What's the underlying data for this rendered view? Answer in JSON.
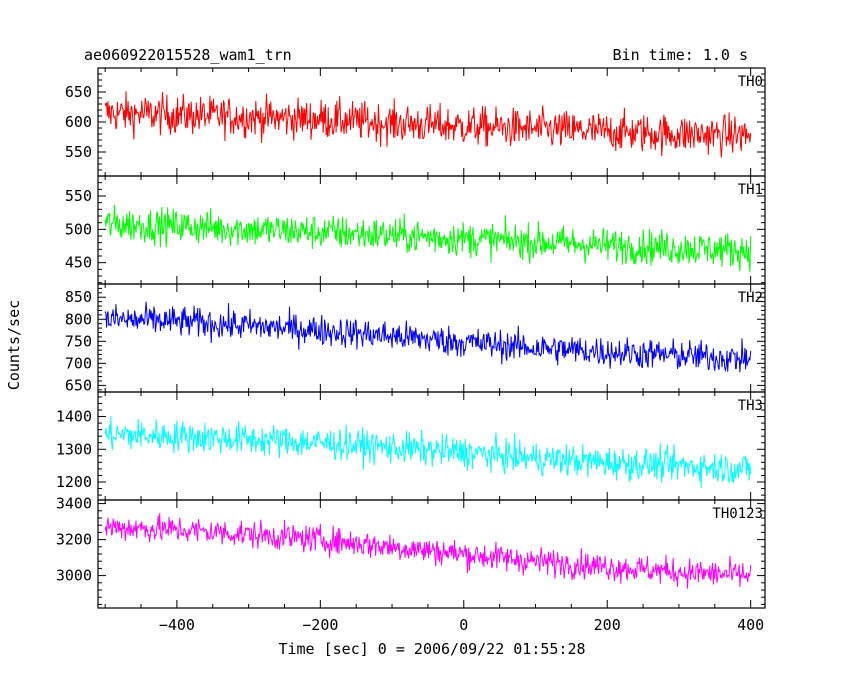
{
  "chart_data": {
    "type": "line",
    "title": "ae060922015528_wam1_trn",
    "subtitle": "Bin time: 1.0 s",
    "xlabel": "Time [sec] 0 = 2006/09/22 01:55:28",
    "ylabel": "Counts/sec",
    "xlim": [
      -510,
      420
    ],
    "xticks": [
      "-400",
      "-200",
      "0",
      "200",
      "400"
    ],
    "grid": false,
    "panels": [
      {
        "name": "TH0",
        "color": "#ff0000",
        "ylim": [
          510,
          690
        ],
        "yticks": [
          "550",
          "600",
          "650"
        ],
        "x": [
          -500,
          -400,
          -300,
          -200,
          -100,
          0,
          100,
          200,
          300,
          400
        ],
        "values": [
          615,
          612,
          608,
          605,
          598,
          593,
          588,
          584,
          580,
          578
        ],
        "noise": 30
      },
      {
        "name": "TH1",
        "color": "#00ff00",
        "ylim": [
          418,
          580
        ],
        "yticks": [
          "450",
          "500",
          "550"
        ],
        "x": [
          -500,
          -400,
          -300,
          -200,
          -100,
          0,
          100,
          200,
          300,
          400
        ],
        "values": [
          508,
          505,
          500,
          496,
          491,
          486,
          481,
          476,
          472,
          468
        ],
        "noise": 24
      },
      {
        "name": "TH2",
        "color": "#0000ff",
        "ylim": [
          635,
          880
        ],
        "yticks": [
          "650",
          "700",
          "750",
          "800",
          "850"
        ],
        "x": [
          -500,
          -400,
          -300,
          -200,
          -100,
          0,
          100,
          200,
          300,
          400
        ],
        "values": [
          800,
          795,
          785,
          775,
          762,
          748,
          735,
          726,
          718,
          710
        ],
        "noise": 32
      },
      {
        "name": "TH3",
        "color": "#00ffff",
        "ylim": [
          1145,
          1475
        ],
        "yticks": [
          "1200",
          "1300",
          "1400"
        ],
        "x": [
          -500,
          -400,
          -300,
          -200,
          -100,
          0,
          100,
          200,
          300,
          400
        ],
        "values": [
          1345,
          1340,
          1330,
          1320,
          1305,
          1290,
          1272,
          1260,
          1250,
          1240
        ],
        "noise": 45
      },
      {
        "name": "TH0123",
        "color": "#ff00ff",
        "ylim": [
          2820,
          3420
        ],
        "yticks": [
          "3000",
          "3200",
          "3400"
        ],
        "x": [
          -500,
          -400,
          -300,
          -200,
          -100,
          0,
          100,
          200,
          300,
          400
        ],
        "values": [
          3270,
          3255,
          3230,
          3200,
          3160,
          3120,
          3080,
          3050,
          3020,
          3000
        ],
        "noise": 70
      }
    ]
  }
}
